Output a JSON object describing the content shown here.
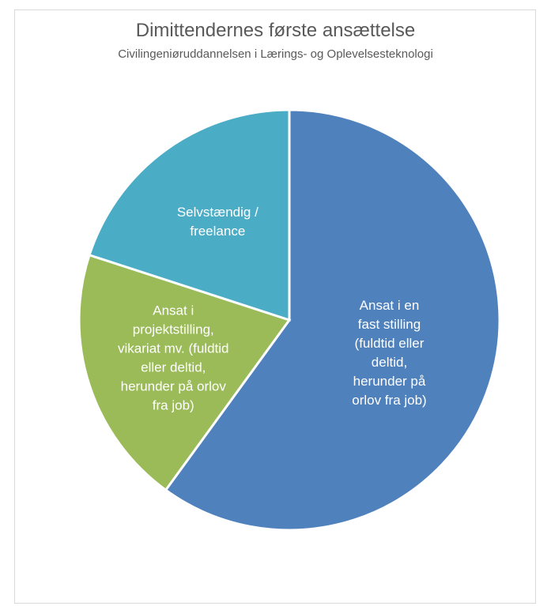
{
  "chart_data": {
    "type": "pie",
    "title": "Dimittendernes første ansættelse",
    "subtitle": "Civilingeniøruddannelsen i Lærings- og Oplevelsesteknologi",
    "legend": "none",
    "slices": [
      {
        "label": "Ansat i en fast stilling (fuldtid eller deltid, herunder på orlov fra job)",
        "label_lines": [
          "Ansat i en",
          "fast stilling",
          "(fuldtid eller",
          "deltid,",
          "herunder på",
          "orlov fra job)"
        ],
        "value": 0.6,
        "color": "#4f81bd"
      },
      {
        "label": "Ansat i projektstilling, vikariat mv. (fuldtid eller deltid, herunder på orlov fra job)",
        "label_lines": [
          "Ansat i",
          "projektstilling,",
          "vikariat mv. (fuldtid",
          "eller deltid,",
          "herunder på orlov",
          "fra job)"
        ],
        "value": 0.2,
        "color": "#9bbb59"
      },
      {
        "label": "Selvstændig / freelance",
        "label_lines": [
          "Selvstændig /",
          "freelance"
        ],
        "value": 0.2,
        "color": "#4bacc6"
      }
    ]
  }
}
